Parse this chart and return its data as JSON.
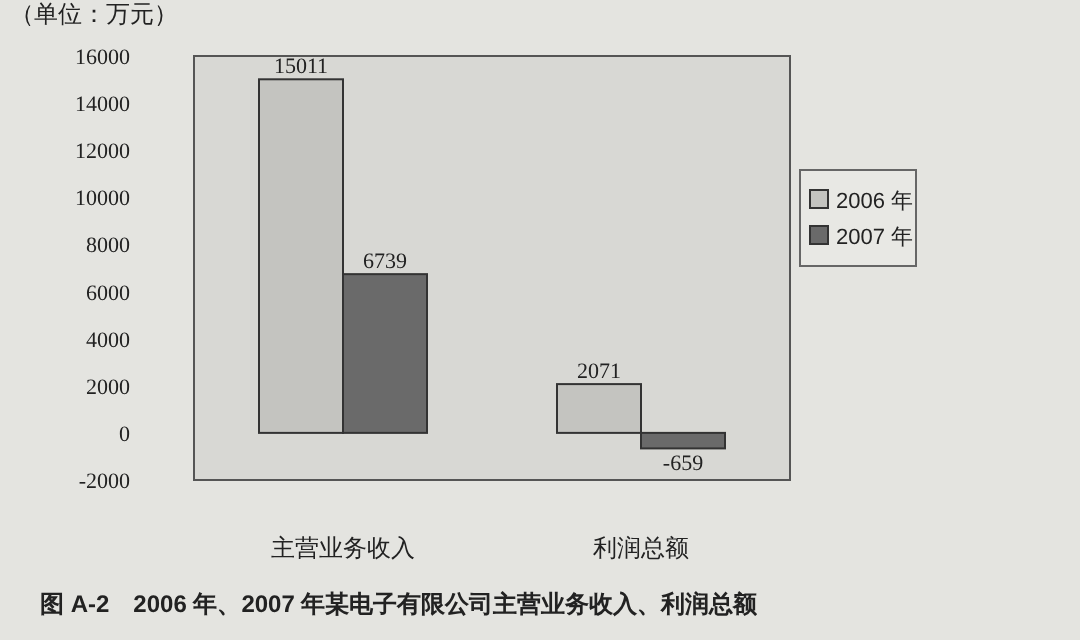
{
  "chart_data": {
    "type": "bar",
    "ylabel": "（单位：万元）",
    "categories": [
      "主营业务收入",
      "利润总额"
    ],
    "series": [
      {
        "name": "2006 年",
        "color": "#c4c4c0",
        "values": [
          15011,
          2071
        ]
      },
      {
        "name": "2007 年",
        "color": "#6a6a6a",
        "values": [
          6739,
          -659
        ]
      }
    ],
    "ylim": [
      -2000,
      16000
    ],
    "yticks": [
      -2000,
      0,
      2000,
      4000,
      6000,
      8000,
      10000,
      12000,
      14000,
      16000
    ],
    "grid": false,
    "legend": "right",
    "data_labels": true,
    "annotations": [
      "图 A-2　2006 年、2007 年某电子有限公司主营业务收入、利润总额"
    ]
  }
}
